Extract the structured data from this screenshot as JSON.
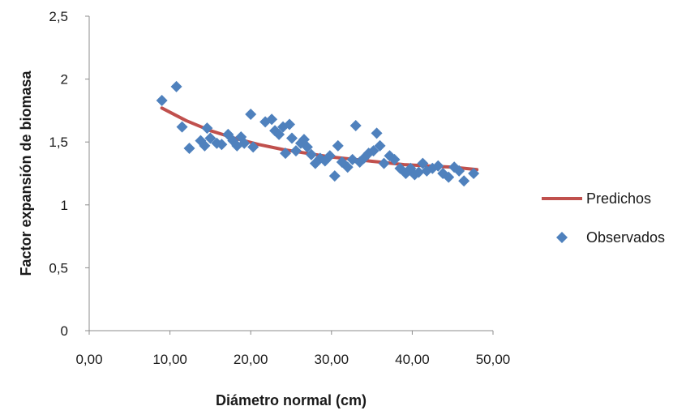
{
  "chart_data": {
    "type": "scatter",
    "title": "",
    "xlabel": "Diámetro normal (cm)",
    "ylabel": "Factor expansión de biomasa",
    "xlim": [
      0,
      50
    ],
    "ylim": [
      0,
      2.5
    ],
    "x_ticks": [
      "0,00",
      "10,00",
      "20,00",
      "30,00",
      "40,00",
      "50,00"
    ],
    "y_ticks": [
      "0",
      "0,5",
      "1",
      "1,5",
      "2",
      "2,5"
    ],
    "grid": false,
    "legend_position": "right",
    "legend": [
      "Predichos",
      "Observados"
    ],
    "colors": {
      "Predichos": "#c0504d",
      "Observados": "#4f81bd"
    },
    "series": [
      {
        "name": "Predichos",
        "kind": "line",
        "x": [
          9,
          12,
          15,
          18,
          21,
          24,
          27,
          30,
          33,
          36,
          39,
          42,
          45,
          48
        ],
        "y": [
          1.77,
          1.67,
          1.59,
          1.53,
          1.48,
          1.44,
          1.41,
          1.38,
          1.36,
          1.34,
          1.32,
          1.31,
          1.3,
          1.28
        ]
      },
      {
        "name": "Observados",
        "kind": "scatter",
        "x": [
          9.0,
          10.8,
          11.5,
          12.4,
          13.8,
          14.3,
          14.6,
          15.0,
          15.8,
          16.4,
          17.2,
          17.8,
          18.3,
          18.8,
          19.2,
          20.0,
          20.3,
          21.8,
          22.6,
          23.0,
          23.5,
          24.0,
          24.3,
          24.8,
          25.1,
          25.6,
          26.2,
          26.6,
          27.0,
          27.5,
          28.0,
          28.6,
          29.2,
          29.8,
          30.4,
          30.8,
          31.3,
          32.0,
          32.6,
          33.0,
          33.5,
          34.0,
          34.6,
          35.2,
          35.6,
          36.0,
          36.5,
          37.2,
          37.8,
          38.5,
          39.2,
          39.8,
          40.3,
          40.8,
          41.3,
          41.8,
          42.5,
          43.2,
          43.8,
          44.5,
          45.2,
          45.8,
          46.4,
          47.6
        ],
        "y": [
          1.83,
          1.94,
          1.62,
          1.45,
          1.51,
          1.47,
          1.61,
          1.53,
          1.49,
          1.48,
          1.56,
          1.51,
          1.47,
          1.54,
          1.49,
          1.72,
          1.46,
          1.66,
          1.68,
          1.59,
          1.56,
          1.62,
          1.41,
          1.64,
          1.53,
          1.43,
          1.49,
          1.52,
          1.46,
          1.4,
          1.33,
          1.37,
          1.35,
          1.39,
          1.23,
          1.47,
          1.34,
          1.3,
          1.36,
          1.63,
          1.34,
          1.37,
          1.41,
          1.43,
          1.57,
          1.47,
          1.33,
          1.39,
          1.36,
          1.29,
          1.25,
          1.29,
          1.24,
          1.26,
          1.33,
          1.27,
          1.29,
          1.31,
          1.25,
          1.22,
          1.3,
          1.27,
          1.19,
          1.25
        ]
      }
    ]
  }
}
